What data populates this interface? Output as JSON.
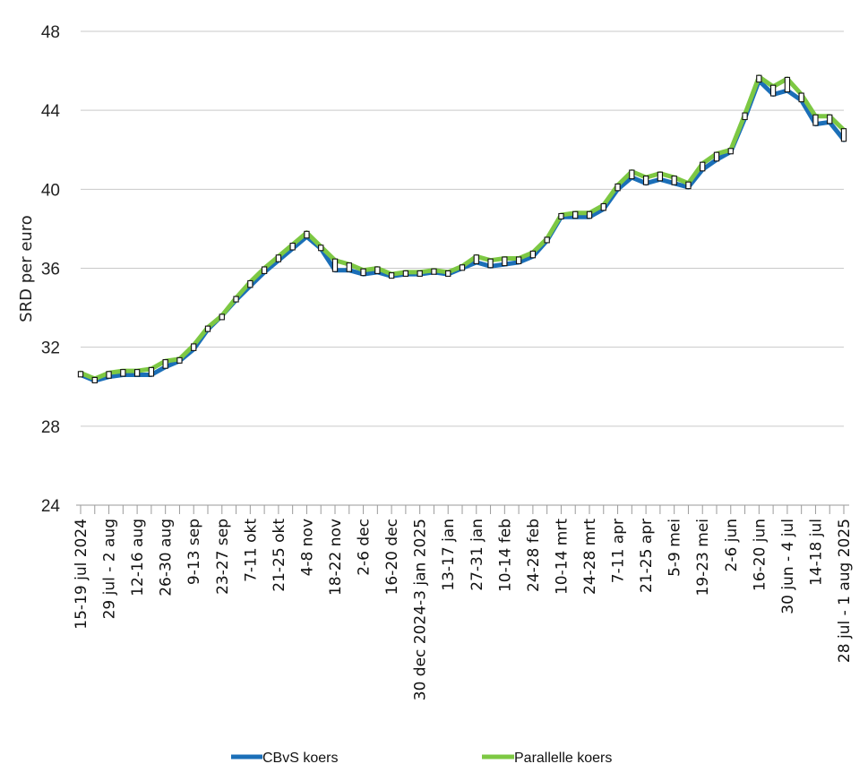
{
  "chart_data": {
    "type": "line",
    "title": "",
    "xlabel": "",
    "ylabel": "SRD per euro",
    "ylim": [
      24,
      48
    ],
    "yticks": [
      24,
      28,
      32,
      36,
      40,
      44,
      48
    ],
    "grid": true,
    "legend_position": "bottom",
    "x": [
      "15-19 jul 2024",
      "22-26 jul",
      "29 jul - 2 aug",
      "5-9 aug",
      "12-16 aug",
      "19-23 aug",
      "26-30 aug",
      "2-6 sep",
      "9-13 sep",
      "16-20 sep",
      "23-27 sep",
      "30 sep-4 okt",
      "7-11 okt",
      "14-18 okt",
      "21-25 okt",
      "28 okt-1 nov",
      "4-8 nov",
      "11-15 nov",
      "18-22 nov",
      "25-29 nov",
      "2-6 dec",
      "9-13 dec",
      "16-20 dec",
      "23-27 dec",
      "30 dec 2024-3 jan 2025",
      "6-10 jan",
      "13-17 jan",
      "20-24 jan",
      "27-31 jan",
      "3-7 feb",
      "10-14 feb",
      "17-21 feb",
      "24-28 feb",
      "3-7 mrt",
      "10-14 mrt",
      "17-21 mrt",
      "24-28 mrt",
      "31 mrt-4 apr",
      "7-11 apr",
      "14-18 apr",
      "21-25 apr",
      "28 apr-2 mei",
      "5-9 mei",
      "12-16 mei",
      "19-23 mei",
      "26-30 mei",
      "2-6 jun",
      "9-13 jun",
      "16-20 jun",
      "23-27 jun",
      "30 jun - 4 jul",
      "7-11 jul",
      "14-18 jul",
      "21-25 jul",
      "28 jul - 1 aug 2025"
    ],
    "visible_x_labels": [
      "15-19 jul 2024",
      "29 jul - 2 aug",
      "12-16 aug",
      "26-30 aug",
      "9-13 sep",
      "23-27 sep",
      "7-11 okt",
      "21-25 okt",
      "4-8 nov",
      "18-22 nov",
      "2-6 dec",
      "16-20 dec",
      "30 dec 2024-3 jan 2025",
      "13-17 jan",
      "27-31 jan",
      "10-14 feb",
      "24-28 feb",
      "10-14 mrt",
      "24-28 mrt",
      "7-11 apr",
      "21-25 apr",
      "5-9 mei",
      "19-23 mei",
      "2-6 jun",
      "16-20 jun",
      "30 jun - 4 jul",
      "14-18 jul",
      "28 jul - 1 aug 2025"
    ],
    "series": [
      {
        "name": "CBvS koers",
        "color": "#1b6fb8",
        "values": [
          30.6,
          30.3,
          30.5,
          30.6,
          30.6,
          30.6,
          31.0,
          31.3,
          31.9,
          32.9,
          33.6,
          34.4,
          35.1,
          35.8,
          36.4,
          37.0,
          37.6,
          37.0,
          35.9,
          35.9,
          35.7,
          35.8,
          35.6,
          35.7,
          35.7,
          35.8,
          35.7,
          36.0,
          36.3,
          36.1,
          36.2,
          36.3,
          36.6,
          37.4,
          38.6,
          38.6,
          38.6,
          39.0,
          40.0,
          40.6,
          40.3,
          40.5,
          40.3,
          40.1,
          41.0,
          41.5,
          41.9,
          43.6,
          45.5,
          44.8,
          45.0,
          44.5,
          43.3,
          43.4,
          42.5
        ]
      },
      {
        "name": "Parallelle koers",
        "color": "#7dc843",
        "values": [
          30.7,
          30.4,
          30.7,
          30.8,
          30.8,
          30.9,
          31.3,
          31.4,
          32.1,
          33.0,
          33.6,
          34.5,
          35.3,
          36.0,
          36.6,
          37.2,
          37.8,
          37.1,
          36.4,
          36.2,
          35.9,
          36.0,
          35.7,
          35.8,
          35.8,
          35.9,
          35.8,
          36.1,
          36.6,
          36.4,
          36.5,
          36.5,
          36.8,
          37.5,
          38.7,
          38.8,
          38.8,
          39.2,
          40.2,
          40.9,
          40.6,
          40.8,
          40.6,
          40.3,
          41.3,
          41.8,
          42.0,
          43.8,
          45.7,
          45.2,
          45.6,
          44.8,
          43.7,
          43.7,
          43.0
        ]
      }
    ]
  }
}
